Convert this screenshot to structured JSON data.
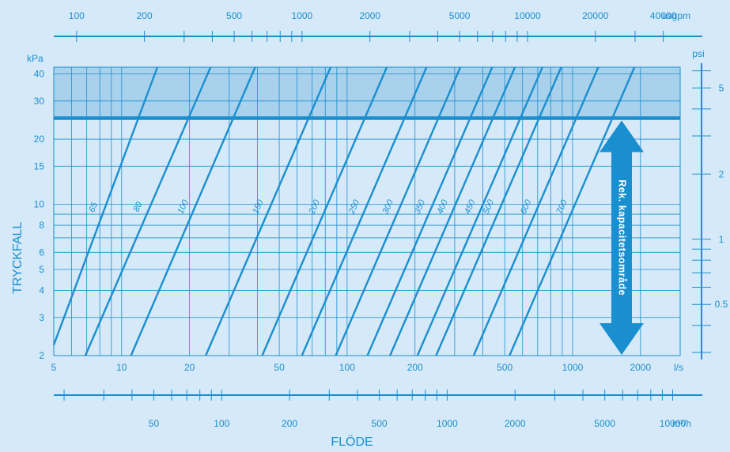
{
  "chart_data": {
    "type": "line",
    "xlabel": "FLÖDE",
    "ylabel": "TRYCKFALL",
    "x_scale": "log",
    "y_scale": "log",
    "xlim": [
      5,
      3000
    ],
    "ylim": [
      2,
      43
    ],
    "x_unit": "l/s",
    "y_unit": "kPa",
    "x_ticks": [
      5,
      10,
      20,
      50,
      100,
      200,
      500,
      1000,
      2000
    ],
    "x_tick_labels": [
      "5",
      "10",
      "20",
      "50",
      "100",
      "200",
      "500",
      "1000",
      "2000"
    ],
    "y_ticks": [
      2,
      3,
      4,
      5,
      6,
      8,
      10,
      15,
      20,
      30,
      40
    ],
    "y_tick_labels": [
      "2",
      "3",
      "4",
      "5",
      "6",
      "8",
      "10",
      "15",
      "20",
      "30",
      "40"
    ],
    "top_axis": {
      "unit": "usgpm",
      "ticks": [
        100,
        200,
        500,
        1000,
        2000,
        5000,
        10000,
        20000,
        40000
      ],
      "tick_labels": [
        "100",
        "200",
        "500",
        "1000",
        "2000",
        "5000",
        "10000",
        "20000",
        "40000"
      ]
    },
    "bottom_axis": {
      "unit": "m³/h",
      "ticks": [
        50,
        100,
        200,
        500,
        1000,
        2000,
        5000,
        10000
      ],
      "tick_labels": [
        "50",
        "100",
        "200",
        "500",
        "1000",
        "2000",
        "5000",
        "10000"
      ]
    },
    "right_axis": {
      "unit": "psi",
      "ticks": [
        0.5,
        1,
        2,
        5
      ],
      "tick_labels": [
        "0.5",
        "1",
        "2",
        "5"
      ]
    },
    "recommended_band": {
      "ymin": 25,
      "ymax": 43
    },
    "recommended_line_y": 25,
    "arrow_label": "Rek. kapacitetsområde",
    "series": [
      {
        "name": "65",
        "points": [
          [
            5.0,
            2.24
          ],
          [
            14.4,
            43
          ]
        ]
      },
      {
        "name": "80",
        "points": [
          [
            6.9,
            2.0
          ],
          [
            24.8,
            43
          ]
        ]
      },
      {
        "name": "100",
        "points": [
          [
            11.0,
            2.0
          ],
          [
            39.1,
            43
          ]
        ]
      },
      {
        "name": "150",
        "points": [
          [
            23.6,
            2.0
          ],
          [
            84.5,
            43
          ]
        ]
      },
      {
        "name": "200",
        "points": [
          [
            42.0,
            2.0
          ],
          [
            150,
            43
          ]
        ]
      },
      {
        "name": "250",
        "points": [
          [
            63.0,
            2.0
          ],
          [
            225,
            43
          ]
        ]
      },
      {
        "name": "300",
        "points": [
          [
            89.0,
            2.0
          ],
          [
            318,
            43
          ]
        ]
      },
      {
        "name": "350",
        "points": [
          [
            123,
            2.0
          ],
          [
            440,
            43
          ]
        ]
      },
      {
        "name": "400",
        "points": [
          [
            155,
            2.0
          ],
          [
            555,
            43
          ]
        ]
      },
      {
        "name": "450",
        "points": [
          [
            205,
            2.0
          ],
          [
            735,
            43
          ]
        ]
      },
      {
        "name": "500",
        "points": [
          [
            248,
            2.0
          ],
          [
            890,
            43
          ]
        ]
      },
      {
        "name": "600",
        "points": [
          [
            364,
            2.0
          ],
          [
            1300,
            43
          ]
        ]
      },
      {
        "name": "700",
        "points": [
          [
            525,
            2.0
          ],
          [
            1880,
            43
          ]
        ]
      }
    ],
    "colors": {
      "background": "#d6e9f8",
      "line": "#1a8fd0",
      "band": "#a9d1ec",
      "grid": "#1a8fd0"
    }
  }
}
